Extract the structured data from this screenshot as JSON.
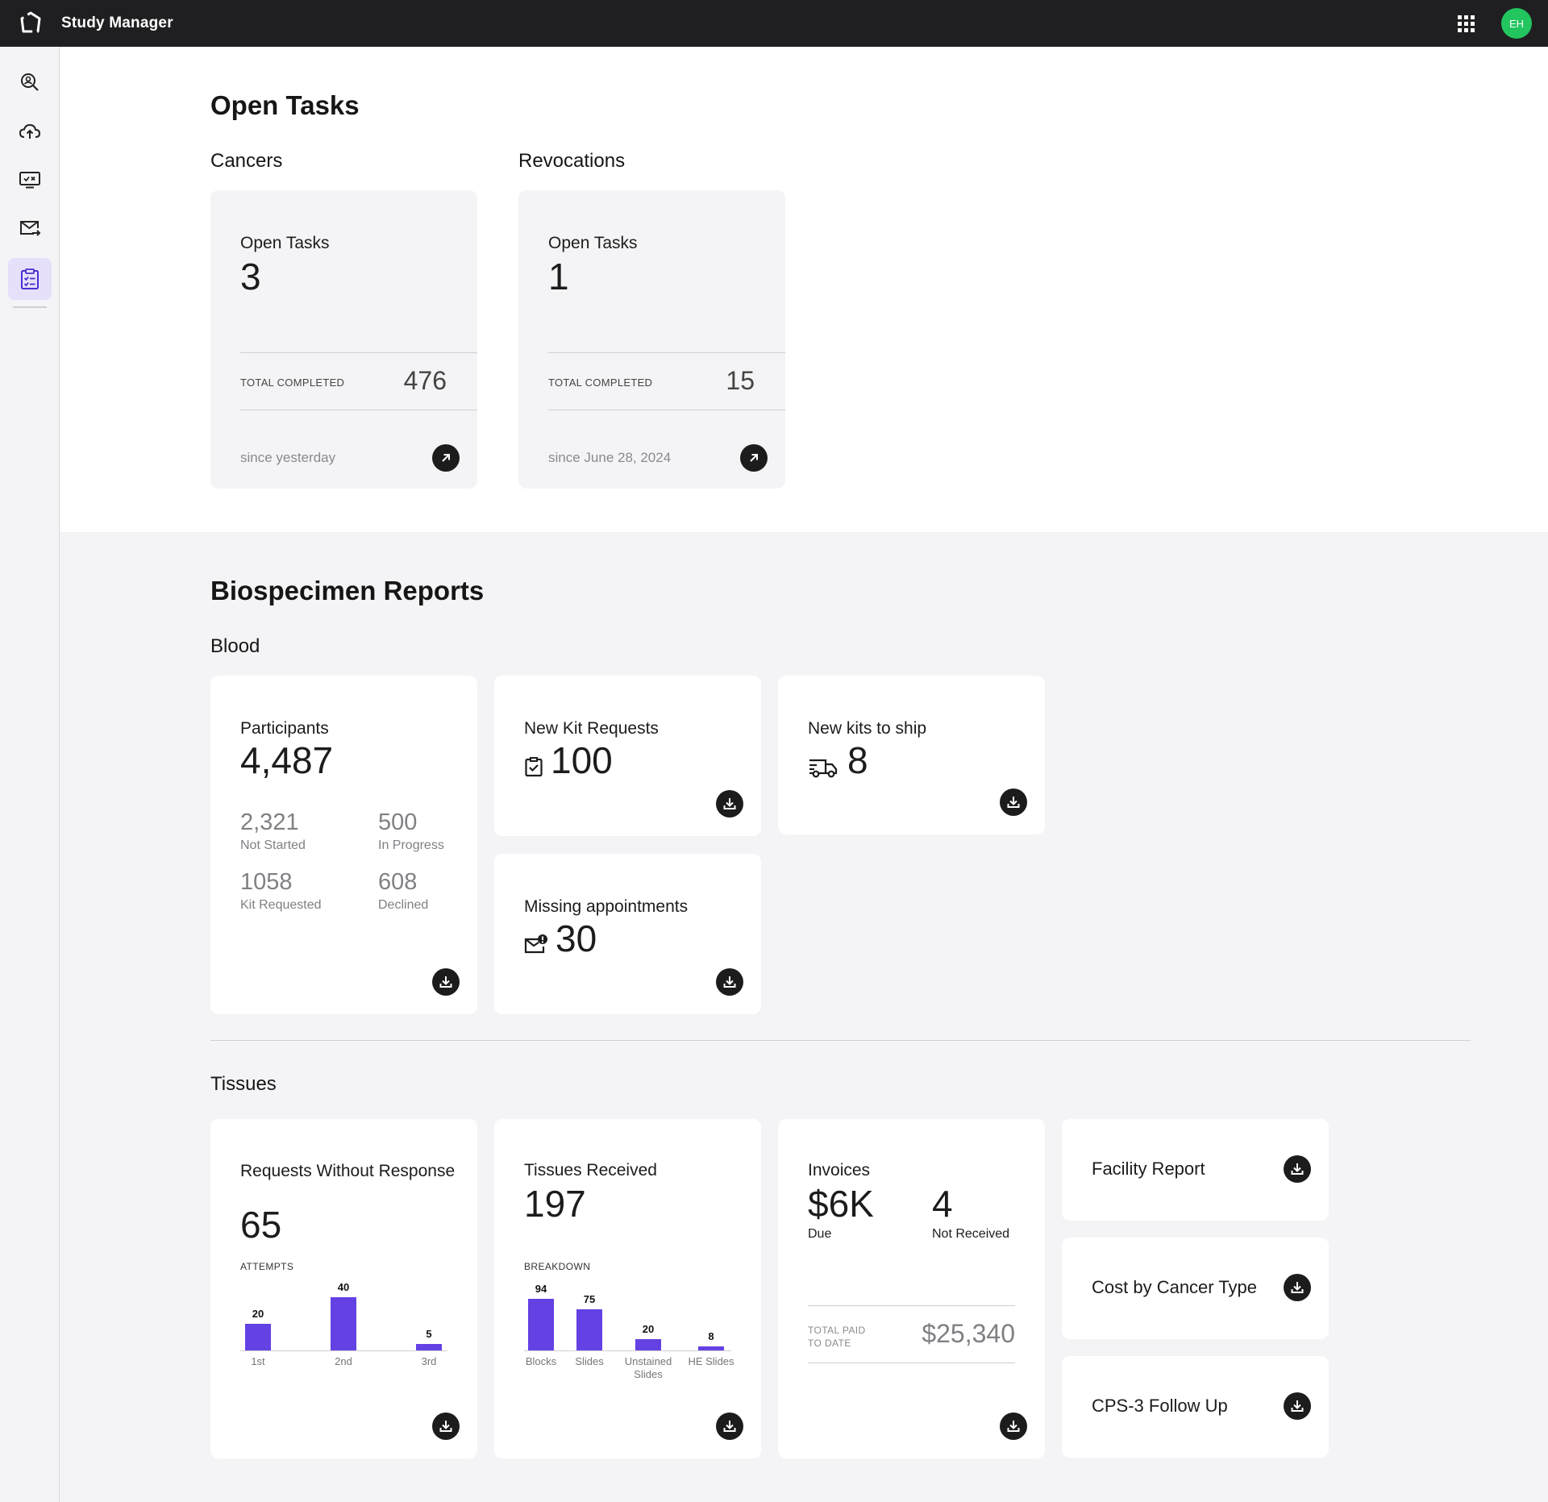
{
  "app": {
    "title": "Study Manager",
    "avatar_initials": "EH",
    "accent": "#6441e3",
    "avatar_color": "#22c55e"
  },
  "sidebar": {
    "items": [
      {
        "icon": "search-user-icon"
      },
      {
        "icon": "cloud-upload-icon"
      },
      {
        "icon": "screen-check-icon"
      },
      {
        "icon": "mail-forward-icon"
      },
      {
        "icon": "clipboard-tasks-icon",
        "active": true
      }
    ]
  },
  "open_tasks": {
    "heading": "Open Tasks",
    "groups": [
      {
        "heading": "Cancers",
        "label": "Open Tasks",
        "count": "3",
        "completed_label": "TOTAL COMPLETED",
        "completed_value": "476",
        "since": "since yesterday"
      },
      {
        "heading": "Revocations",
        "label": "Open Tasks",
        "count": "1",
        "completed_label": "TOTAL COMPLETED",
        "completed_value": "15",
        "since": "since June 28, 2024"
      }
    ]
  },
  "biospecimen": {
    "heading": "Biospecimen Reports",
    "blood": {
      "heading": "Blood",
      "participants": {
        "title": "Participants",
        "value": "4,487",
        "stats": [
          {
            "value": "2,321",
            "label": "Not Started"
          },
          {
            "value": "500",
            "label": "In Progress"
          },
          {
            "value": "1058",
            "label": "Kit Requested"
          },
          {
            "value": "608",
            "label": "Declined"
          }
        ]
      },
      "new_kit_requests": {
        "title": "New Kit Requests",
        "value": "100"
      },
      "new_kits_to_ship": {
        "title": "New kits to ship",
        "value": "8"
      },
      "missing_appointments": {
        "title": "Missing appointments",
        "value": "30"
      }
    },
    "tissues": {
      "heading": "Tissues",
      "requests": {
        "title": "Requests Without Response",
        "value": "65",
        "chart_title": "ATTEMPTS",
        "chart_data": {
          "type": "bar",
          "categories": [
            "1st",
            "2nd",
            "3rd"
          ],
          "values": [
            20,
            40,
            5
          ]
        }
      },
      "received": {
        "title": "Tissues Received",
        "value": "197",
        "chart_title": "BREAKDOWN",
        "chart_data": {
          "type": "bar",
          "categories": [
            "Blocks",
            "Slides",
            "Unstained Slides",
            "HE Slides"
          ],
          "values": [
            94,
            75,
            20,
            8
          ]
        }
      },
      "invoices": {
        "title": "Invoices",
        "due_value": "$6K",
        "due_label": "Due",
        "not_received_value": "4",
        "not_received_label": "Not Received",
        "paid_label_1": "TOTAL PAID",
        "paid_label_2": "TO DATE",
        "paid_value": "$25,340"
      },
      "reports": [
        {
          "title": "Facility Report"
        },
        {
          "title": "Cost by Cancer Type"
        },
        {
          "title": "CPS-3 Follow Up"
        }
      ]
    }
  }
}
